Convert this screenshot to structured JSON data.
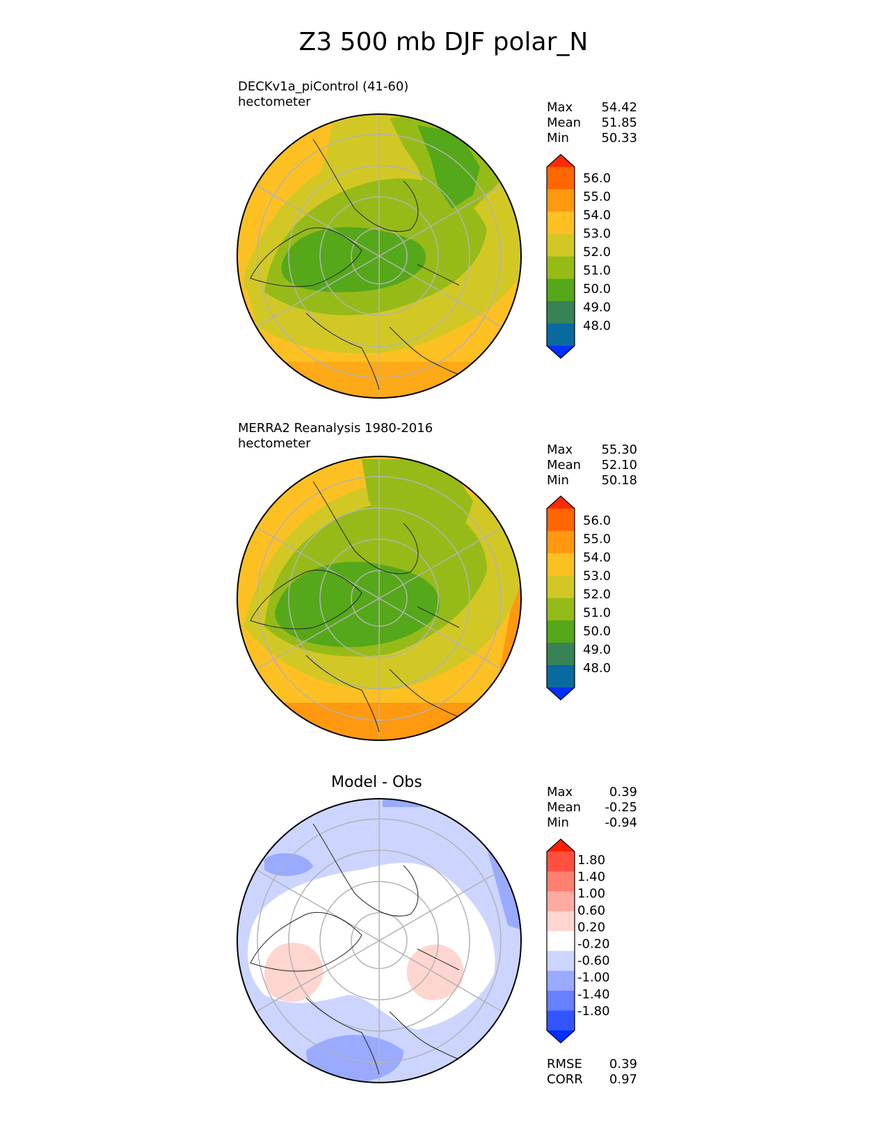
{
  "title": "Z3 500 mb DJF polar_N",
  "panels": [
    {
      "label_line1": "DECKv1a_piControl (41-60)",
      "label_line2": "hectometer",
      "stats": [
        {
          "name": "Max",
          "value": "54.42"
        },
        {
          "name": "Mean",
          "value": "51.85"
        },
        {
          "name": "Min",
          "value": "50.33"
        }
      ],
      "colorbar": {
        "ticks": [
          "56.0",
          "55.0",
          "54.0",
          "53.0",
          "52.0",
          "51.0",
          "50.0",
          "49.0",
          "48.0"
        ],
        "colors": [
          "#ff2a00",
          "#ff6600",
          "#ff9910",
          "#fdc023",
          "#d2c825",
          "#96bb18",
          "#55a819",
          "#378356",
          "#096aa0",
          "#0030ff"
        ]
      }
    },
    {
      "label_line1": "MERRA2 Reanalysis 1980-2016",
      "label_line2": "hectometer",
      "stats": [
        {
          "name": "Max",
          "value": "55.30"
        },
        {
          "name": "Mean",
          "value": "52.10"
        },
        {
          "name": "Min",
          "value": "50.18"
        }
      ],
      "colorbar": {
        "ticks": [
          "56.0",
          "55.0",
          "54.0",
          "53.0",
          "52.0",
          "51.0",
          "50.0",
          "49.0",
          "48.0"
        ],
        "colors": [
          "#ff2a00",
          "#ff6600",
          "#ff9910",
          "#fdc023",
          "#d2c825",
          "#96bb18",
          "#55a819",
          "#378356",
          "#096aa0",
          "#0030ff"
        ]
      }
    },
    {
      "title": "Model - Obs",
      "stats": [
        {
          "name": "Max",
          "value": "0.39"
        },
        {
          "name": "Mean",
          "value": "-0.25"
        },
        {
          "name": "Min",
          "value": "-0.94"
        }
      ],
      "footer_stats": [
        {
          "name": "RMSE",
          "value": "0.39"
        },
        {
          "name": "CORR",
          "value": "0.97"
        }
      ],
      "colorbar": {
        "ticks": [
          "1.80",
          "1.40",
          "1.00",
          "0.60",
          "0.20",
          "-0.20",
          "-0.60",
          "-1.00",
          "-1.40",
          "-1.80"
        ],
        "colors": [
          "#ff2000",
          "#ff5040",
          "#ff8070",
          "#ffaaa0",
          "#ffd5d0",
          "#ffffff",
          "#ccd5ff",
          "#99aaff",
          "#6680ff",
          "#3355ff",
          "#0030ff"
        ]
      }
    }
  ]
}
